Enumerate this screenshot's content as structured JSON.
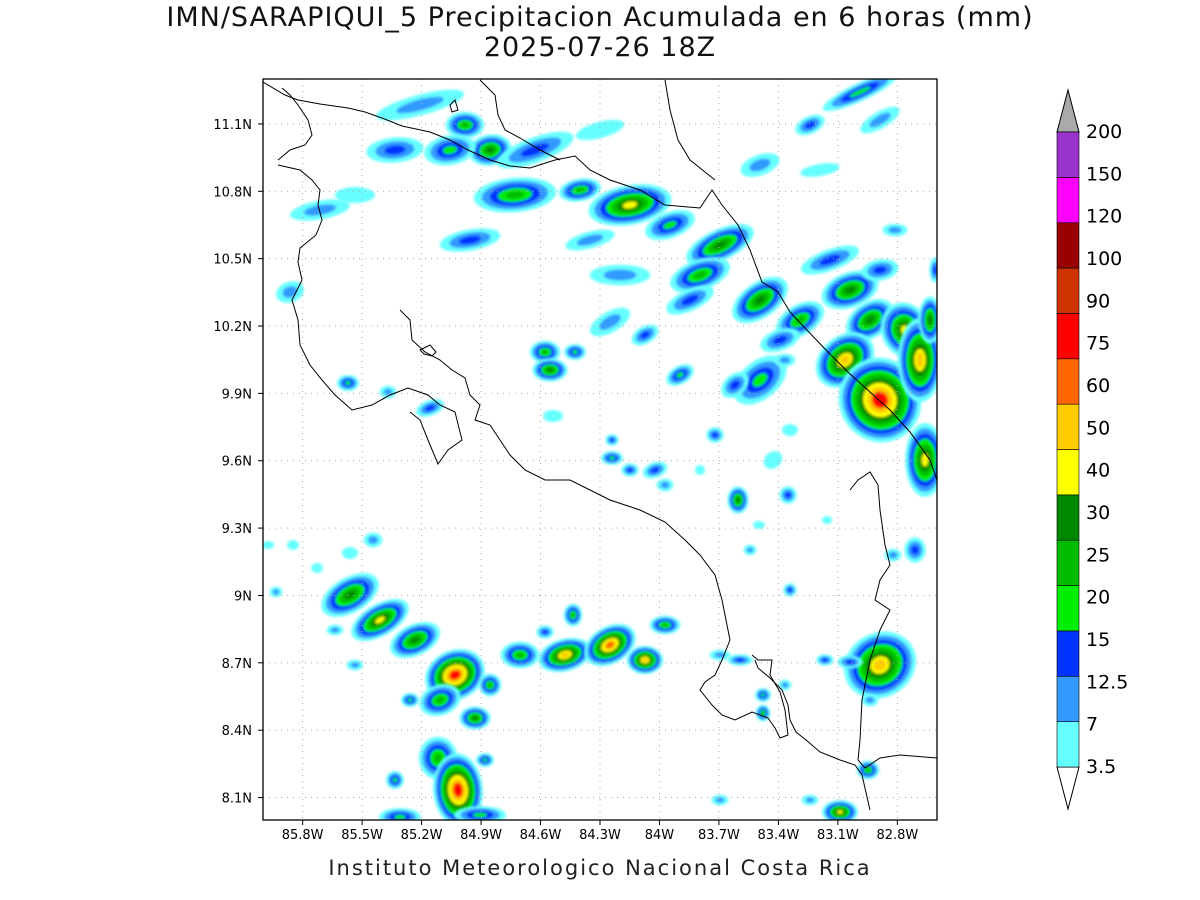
{
  "title_line1": "IMN/SARAPIQUI_5 Precipitacion Acumulada en 6 horas (mm)",
  "title_line2": "2025-07-26 18Z",
  "footer": "Instituto Meteorologico Nacional Costa Rica",
  "map": {
    "lon_range": [
      -86.0,
      -82.6
    ],
    "lat_range": [
      8.0,
      11.3
    ],
    "lon_ticks": [
      "85.8W",
      "85.5W",
      "85.2W",
      "84.9W",
      "84.6W",
      "84.3W",
      "84W",
      "83.7W",
      "83.4W",
      "83.1W",
      "82.8W"
    ],
    "lat_ticks": [
      "8.1N",
      "8.4N",
      "8.7N",
      "9N",
      "9.3N",
      "9.6N",
      "9.9N",
      "10.2N",
      "10.5N",
      "10.8N",
      "11.1N"
    ]
  },
  "colorbar": {
    "labels": [
      "3.5",
      "7",
      "12.5",
      "15",
      "20",
      "25",
      "30",
      "40",
      "50",
      "60",
      "75",
      "90",
      "100",
      "120",
      "150",
      "200"
    ],
    "colors": [
      "#66ffff",
      "#3399ff",
      "#0033ff",
      "#00ee00",
      "#00bb00",
      "#008800",
      "#ffff00",
      "#ffcc00",
      "#ff6600",
      "#ff0000",
      "#cc3300",
      "#990000",
      "#ff00ff",
      "#9933cc",
      "#f4f4f4",
      "#aaaaaa"
    ]
  },
  "precip_colors": {
    "c3_5": "#66ffff",
    "c7": "#3399ff",
    "c12_5": "#0033ff",
    "c15": "#00ee00",
    "c20": "#00bb00",
    "c25": "#008800",
    "c30": "#ffff00",
    "c40": "#ffcc00",
    "c50": "#ff6600",
    "c60": "#ff0000"
  }
}
